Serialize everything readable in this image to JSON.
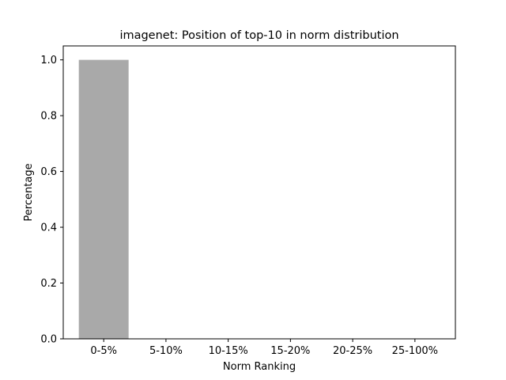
{
  "chart_data": {
    "type": "bar",
    "title": "imagenet: Position of top-10 in norm distribution",
    "xlabel": "Norm Ranking",
    "ylabel": "Percentage",
    "categories": [
      "0-5%",
      "5-10%",
      "10-15%",
      "15-20%",
      "20-25%",
      "25-100%"
    ],
    "values": [
      1.0,
      0.0,
      0.0,
      0.0,
      0.0,
      0.0
    ],
    "ylim": [
      0,
      1.05
    ],
    "yticks": [
      "0.0",
      "0.2",
      "0.4",
      "0.6",
      "0.8",
      "1.0"
    ],
    "bar_color": "#a9a9a9",
    "grid": false
  }
}
